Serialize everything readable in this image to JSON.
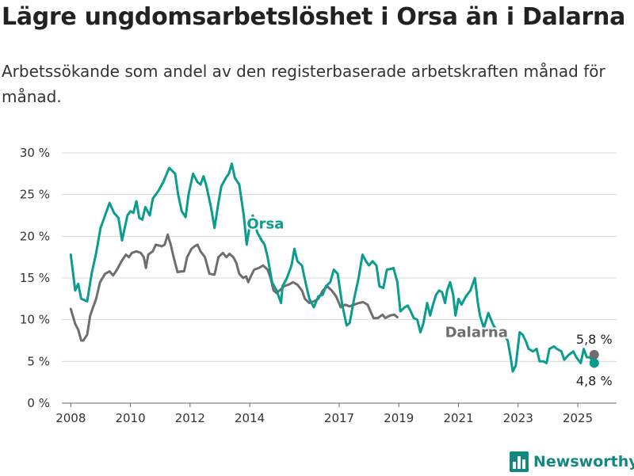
{
  "title": "Lägre ungdomsarbetslöshet i Orsa än i Dalarna",
  "subtitle": "Arbetssökande som andel av den registerbaserade arbetskraften månad för månad.",
  "brand": {
    "name": "Newsworthy",
    "icon": "bar-chart-logo-icon"
  },
  "colors": {
    "orsa": "#0a9c8e",
    "dalarna": "#6e6e6e",
    "grid": "#d9d9d9",
    "brand": "#12887e"
  },
  "chart_data": {
    "type": "line",
    "xlim": [
      2007.7,
      2026.3
    ],
    "ylim": [
      0,
      30
    ],
    "x_ticks": [
      {
        "value": 2008,
        "label": "2008"
      },
      {
        "value": 2010,
        "label": "2010"
      },
      {
        "value": 2012,
        "label": "2012"
      },
      {
        "value": 2014,
        "label": "2014"
      },
      {
        "value": 2017,
        "label": "2017"
      },
      {
        "value": 2019,
        "label": "2019"
      },
      {
        "value": 2021,
        "label": "2021"
      },
      {
        "value": 2023,
        "label": "2023"
      },
      {
        "value": 2025,
        "label": "2025"
      }
    ],
    "y_ticks": [
      {
        "value": 0,
        "label": "0 %"
      },
      {
        "value": 5,
        "label": "5 %"
      },
      {
        "value": 10,
        "label": "10 %"
      },
      {
        "value": 15,
        "label": "15 %"
      },
      {
        "value": 20,
        "label": "20 %"
      },
      {
        "value": 25,
        "label": "25 %"
      },
      {
        "value": 30,
        "label": "30 %"
      }
    ],
    "grid": true,
    "legend": "inline labels",
    "series": [
      {
        "name": "Orsa",
        "color": "#0a9c8e",
        "end_label": "4,8 %",
        "points": [
          [
            2008.0,
            17.8
          ],
          [
            2008.15,
            13.5
          ],
          [
            2008.25,
            14.3
          ],
          [
            2008.35,
            12.5
          ],
          [
            2008.55,
            12.2
          ],
          [
            2008.7,
            15.5
          ],
          [
            2008.85,
            18.0
          ],
          [
            2009.0,
            21.0
          ],
          [
            2009.15,
            22.5
          ],
          [
            2009.3,
            24.0
          ],
          [
            2009.45,
            22.8
          ],
          [
            2009.6,
            22.2
          ],
          [
            2009.72,
            19.5
          ],
          [
            2009.9,
            22.5
          ],
          [
            2010.0,
            23.0
          ],
          [
            2010.1,
            22.8
          ],
          [
            2010.2,
            24.2
          ],
          [
            2010.3,
            22.2
          ],
          [
            2010.4,
            22.0
          ],
          [
            2010.5,
            23.5
          ],
          [
            2010.65,
            22.5
          ],
          [
            2010.75,
            24.5
          ],
          [
            2010.95,
            25.5
          ],
          [
            2011.1,
            26.5
          ],
          [
            2011.3,
            28.2
          ],
          [
            2011.5,
            27.5
          ],
          [
            2011.6,
            25.0
          ],
          [
            2011.72,
            23.0
          ],
          [
            2011.85,
            22.3
          ],
          [
            2011.95,
            25.0
          ],
          [
            2012.1,
            27.5
          ],
          [
            2012.25,
            26.5
          ],
          [
            2012.35,
            26.2
          ],
          [
            2012.45,
            27.2
          ],
          [
            2012.55,
            26.0
          ],
          [
            2012.7,
            23.5
          ],
          [
            2012.82,
            21.0
          ],
          [
            2012.95,
            24.0
          ],
          [
            2013.05,
            26.0
          ],
          [
            2013.2,
            27.0
          ],
          [
            2013.3,
            27.5
          ],
          [
            2013.4,
            28.7
          ],
          [
            2013.5,
            27.0
          ],
          [
            2013.65,
            26.2
          ],
          [
            2013.8,
            22.5
          ],
          [
            2013.9,
            19.0
          ],
          [
            2013.98,
            20.8
          ],
          [
            2014.1,
            22.5
          ],
          [
            2014.25,
            20.5
          ],
          [
            2014.4,
            19.5
          ],
          [
            2014.5,
            19.0
          ],
          [
            2014.6,
            17.5
          ],
          [
            2014.75,
            14.5
          ],
          [
            2014.9,
            13.5
          ],
          [
            2015.05,
            12.0
          ],
          [
            2015.1,
            14.0
          ],
          [
            2015.25,
            15.0
          ],
          [
            2015.4,
            16.5
          ],
          [
            2015.5,
            18.5
          ],
          [
            2015.6,
            17.0
          ],
          [
            2015.75,
            16.5
          ],
          [
            2015.9,
            14.0
          ],
          [
            2016.0,
            12.5
          ],
          [
            2016.15,
            11.5
          ],
          [
            2016.3,
            12.8
          ],
          [
            2016.45,
            13.0
          ],
          [
            2016.55,
            14.0
          ],
          [
            2016.7,
            14.5
          ],
          [
            2016.82,
            16.0
          ],
          [
            2016.95,
            15.5
          ],
          [
            2017.1,
            11.8
          ],
          [
            2017.25,
            9.3
          ],
          [
            2017.35,
            9.6
          ],
          [
            2017.5,
            12.5
          ],
          [
            2017.65,
            15.0
          ],
          [
            2017.78,
            17.8
          ],
          [
            2017.9,
            17.0
          ],
          [
            2018.0,
            16.5
          ],
          [
            2018.12,
            17.0
          ],
          [
            2018.25,
            16.5
          ],
          [
            2018.35,
            14.0
          ],
          [
            2018.48,
            13.8
          ],
          [
            2018.6,
            16.0
          ],
          [
            2018.75,
            16.1
          ],
          [
            2018.82,
            16.2
          ],
          [
            2018.95,
            14.5
          ],
          [
            2019.05,
            11.0
          ],
          [
            2019.2,
            11.5
          ],
          [
            2019.3,
            11.7
          ],
          [
            2019.4,
            11.0
          ],
          [
            2019.5,
            10.2
          ],
          [
            2019.62,
            10.0
          ],
          [
            2019.72,
            8.5
          ],
          [
            2019.82,
            9.5
          ],
          [
            2019.95,
            12.0
          ],
          [
            2020.05,
            10.5
          ],
          [
            2020.12,
            11.5
          ],
          [
            2020.25,
            13.0
          ],
          [
            2020.35,
            13.5
          ],
          [
            2020.45,
            13.3
          ],
          [
            2020.55,
            12.0
          ],
          [
            2020.62,
            13.5
          ],
          [
            2020.72,
            14.5
          ],
          [
            2020.82,
            13.0
          ],
          [
            2020.9,
            10.5
          ],
          [
            2021.0,
            12.5
          ],
          [
            2021.1,
            11.8
          ],
          [
            2021.25,
            12.8
          ],
          [
            2021.4,
            13.5
          ],
          [
            2021.55,
            15.0
          ],
          [
            2021.65,
            12.0
          ],
          [
            2021.72,
            10.5
          ],
          [
            2021.85,
            9.0
          ],
          [
            2022.0,
            10.8
          ],
          [
            2022.15,
            9.5
          ],
          [
            2022.3,
            8.5
          ],
          [
            2022.45,
            8.2
          ],
          [
            2022.55,
            8.0
          ],
          [
            2022.65,
            7.5
          ],
          [
            2022.75,
            5.5
          ],
          [
            2022.82,
            3.8
          ],
          [
            2022.92,
            4.5
          ],
          [
            2023.05,
            8.5
          ],
          [
            2023.15,
            8.2
          ],
          [
            2023.25,
            7.5
          ],
          [
            2023.35,
            6.5
          ],
          [
            2023.5,
            6.2
          ],
          [
            2023.62,
            6.5
          ],
          [
            2023.72,
            5.0
          ],
          [
            2023.85,
            5.0
          ],
          [
            2023.95,
            4.8
          ],
          [
            2024.05,
            6.5
          ],
          [
            2024.2,
            6.8
          ],
          [
            2024.3,
            6.5
          ],
          [
            2024.45,
            6.2
          ],
          [
            2024.55,
            5.2
          ],
          [
            2024.7,
            5.8
          ],
          [
            2024.85,
            6.2
          ],
          [
            2024.95,
            5.5
          ],
          [
            2025.1,
            4.8
          ],
          [
            2025.2,
            6.5
          ],
          [
            2025.3,
            5.5
          ],
          [
            2025.4,
            5.5
          ],
          [
            2025.55,
            4.8
          ]
        ]
      },
      {
        "name": "Dalarna",
        "color": "#6e6e6e",
        "end_label": "5,8 %",
        "points": [
          [
            2008.0,
            11.3
          ],
          [
            2008.15,
            9.5
          ],
          [
            2008.25,
            8.8
          ],
          [
            2008.35,
            7.5
          ],
          [
            2008.42,
            7.5
          ],
          [
            2008.55,
            8.2
          ],
          [
            2008.65,
            10.5
          ],
          [
            2008.75,
            11.5
          ],
          [
            2008.85,
            12.5
          ],
          [
            2008.98,
            14.5
          ],
          [
            2009.15,
            15.5
          ],
          [
            2009.3,
            15.8
          ],
          [
            2009.42,
            15.3
          ],
          [
            2009.55,
            16.0
          ],
          [
            2009.7,
            17.0
          ],
          [
            2009.85,
            17.8
          ],
          [
            2009.95,
            17.5
          ],
          [
            2010.05,
            18.0
          ],
          [
            2010.2,
            18.2
          ],
          [
            2010.35,
            18.0
          ],
          [
            2010.45,
            17.5
          ],
          [
            2010.52,
            16.2
          ],
          [
            2010.6,
            17.8
          ],
          [
            2010.75,
            18.2
          ],
          [
            2010.85,
            19.0
          ],
          [
            2011.05,
            18.8
          ],
          [
            2011.15,
            19.0
          ],
          [
            2011.25,
            20.2
          ],
          [
            2011.35,
            19.0
          ],
          [
            2011.45,
            17.5
          ],
          [
            2011.58,
            15.7
          ],
          [
            2011.7,
            15.8
          ],
          [
            2011.8,
            15.8
          ],
          [
            2011.9,
            17.5
          ],
          [
            2012.05,
            18.5
          ],
          [
            2012.15,
            18.8
          ],
          [
            2012.25,
            19.0
          ],
          [
            2012.35,
            18.2
          ],
          [
            2012.5,
            17.5
          ],
          [
            2012.65,
            15.5
          ],
          [
            2012.82,
            15.4
          ],
          [
            2012.95,
            17.5
          ],
          [
            2013.1,
            18.0
          ],
          [
            2013.22,
            17.5
          ],
          [
            2013.32,
            17.9
          ],
          [
            2013.45,
            17.5
          ],
          [
            2013.55,
            16.8
          ],
          [
            2013.65,
            15.5
          ],
          [
            2013.78,
            15.0
          ],
          [
            2013.88,
            15.2
          ],
          [
            2013.95,
            14.5
          ],
          [
            2014.05,
            15.3
          ],
          [
            2014.15,
            16.0
          ],
          [
            2014.3,
            16.2
          ],
          [
            2014.45,
            16.5
          ],
          [
            2014.6,
            16.0
          ],
          [
            2014.7,
            15.0
          ],
          [
            2014.8,
            13.5
          ],
          [
            2014.9,
            13.2
          ],
          [
            2015.0,
            13.5
          ],
          [
            2015.15,
            14.0
          ],
          [
            2015.3,
            14.2
          ],
          [
            2015.45,
            14.5
          ],
          [
            2015.6,
            14.2
          ],
          [
            2015.75,
            13.5
          ],
          [
            2015.85,
            12.5
          ],
          [
            2016.0,
            12.0
          ],
          [
            2016.15,
            12.2
          ],
          [
            2016.3,
            12.5
          ],
          [
            2016.45,
            13.5
          ],
          [
            2016.6,
            14.0
          ],
          [
            2016.75,
            13.5
          ],
          [
            2016.9,
            12.8
          ],
          [
            2017.05,
            11.5
          ],
          [
            2017.2,
            11.8
          ],
          [
            2017.35,
            11.6
          ],
          [
            2017.5,
            11.8
          ],
          [
            2017.65,
            12.0
          ],
          [
            2017.8,
            12.1
          ],
          [
            2017.95,
            11.8
          ],
          [
            2018.05,
            11.0
          ],
          [
            2018.15,
            10.2
          ],
          [
            2018.3,
            10.2
          ],
          [
            2018.45,
            10.6
          ],
          [
            2018.55,
            10.2
          ],
          [
            2018.7,
            10.5
          ],
          [
            2018.85,
            10.6
          ],
          [
            2018.95,
            10.3
          ]
        ]
      }
    ],
    "annotations": [
      {
        "text": "Orsa",
        "series": "Orsa",
        "x": 2013.9,
        "y": 21.5
      },
      {
        "text": "Dalarna",
        "series": "Dalarna",
        "x": 2020.55,
        "y": 8.5
      },
      {
        "text": "5,8 %",
        "series": "Dalarna",
        "x": 2025.55,
        "y": 5.8
      },
      {
        "text": "4,8 %",
        "series": "Orsa",
        "x": 2025.55,
        "y": 4.8
      }
    ]
  }
}
